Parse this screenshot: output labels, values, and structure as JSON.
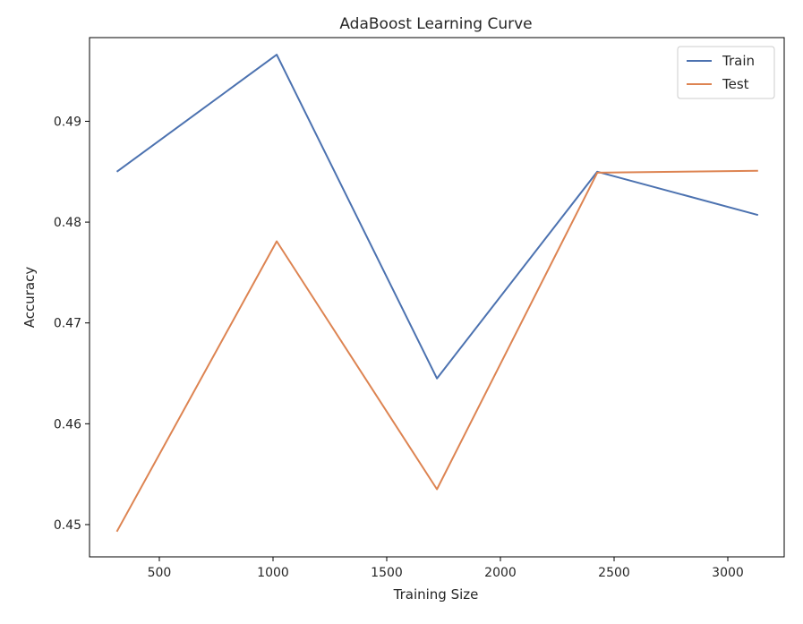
{
  "chart_data": {
    "type": "line",
    "title": "AdaBoost Learning Curve",
    "xlabel": "Training Size",
    "ylabel": "Accuracy",
    "x": [
      313,
      1016,
      1721,
      2426,
      3133
    ],
    "series": [
      {
        "name": "Train",
        "color": "#4c72b0",
        "values": [
          0.485,
          0.4966,
          0.4645,
          0.485,
          0.4807
        ]
      },
      {
        "name": "Test",
        "color": "#dd8452",
        "values": [
          0.4493,
          0.4781,
          0.4535,
          0.4849,
          0.4851
        ]
      }
    ],
    "xlim": [
      193,
      3248
    ],
    "ylim": [
      0.4468,
      0.4983
    ],
    "xticks": [
      500,
      1000,
      1500,
      2000,
      2500,
      3000
    ],
    "xtick_labels": [
      "500",
      "1000",
      "1500",
      "2000",
      "2500",
      "3000"
    ],
    "yticks": [
      0.45,
      0.46,
      0.47,
      0.48,
      0.49
    ],
    "ytick_labels": [
      "0.45",
      "0.46",
      "0.47",
      "0.48",
      "0.49"
    ],
    "grid": false,
    "legend_position": "top-right"
  }
}
